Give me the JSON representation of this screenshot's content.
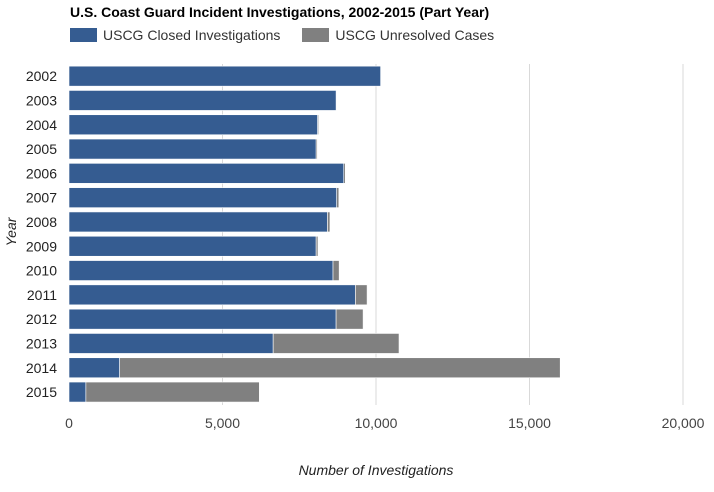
{
  "chart_data": {
    "type": "bar",
    "orientation": "horizontal",
    "stacked": true,
    "title": "U.S. Coast Guard Incident Investigations, 2002-2015 (Part Year)",
    "xlabel": "Number of Investigations",
    "ylabel": "Year",
    "xlim": [
      0,
      20000
    ],
    "x_ticks": [
      0,
      5000,
      10000,
      15000,
      20000
    ],
    "x_tick_labels": [
      "0",
      "5,000",
      "10,000",
      "15,000",
      "20,000"
    ],
    "grid": "vertical",
    "legend_position": "top-left",
    "categories": [
      "2002",
      "2003",
      "2004",
      "2005",
      "2006",
      "2007",
      "2008",
      "2009",
      "2010",
      "2011",
      "2012",
      "2013",
      "2014",
      "2015"
    ],
    "series": [
      {
        "name": "USCG Closed Investigations",
        "color": "#355c91",
        "values": [
          10150,
          8700,
          8100,
          8050,
          8950,
          8720,
          8420,
          8050,
          8600,
          9330,
          8700,
          6650,
          1650,
          550
        ]
      },
      {
        "name": "USCG Unresolved Cases",
        "color": "#808080",
        "values": [
          0,
          0,
          30,
          40,
          50,
          70,
          80,
          60,
          200,
          380,
          880,
          4100,
          14350,
          5650
        ]
      }
    ]
  }
}
